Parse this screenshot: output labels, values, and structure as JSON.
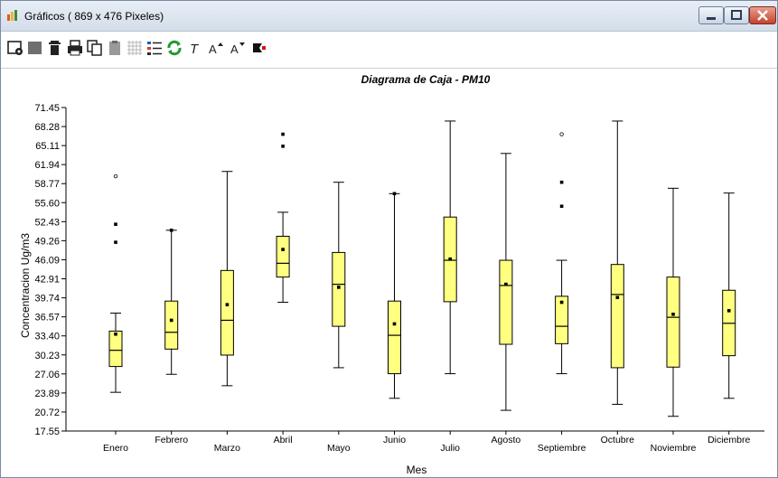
{
  "window": {
    "title": "Gráficos ( 869 x 476 Pixeles)"
  },
  "toolbar": {
    "icons": [
      "settings-icon",
      "color-icon",
      "delete-icon",
      "print-icon",
      "copy-icon",
      "paste-icon",
      "grid-icon",
      "legend-icon",
      "refresh-icon",
      "text-style-icon",
      "font-increase-icon",
      "font-decrease-icon",
      "flag-icon"
    ],
    "labels": {
      "t": "T",
      "font_up": "A",
      "font_down": "A"
    }
  },
  "chart_data": {
    "type": "box",
    "title": "Diagrama de Caja - PM10",
    "xlabel": "Mes",
    "ylabel": "Concentracion Ug/m3",
    "ylim": [
      17.55,
      71.45
    ],
    "yticks": [
      "71.45",
      "68.28",
      "65.11",
      "61.94",
      "58.77",
      "55.60",
      "52.43",
      "49.26",
      "46.09",
      "42.91",
      "39.74",
      "36.57",
      "33.40",
      "30.23",
      "27.06",
      "23.89",
      "20.72",
      "17.55"
    ],
    "grid": false,
    "box_color": "#ffff80",
    "categories": [
      "Enero",
      "Febrero",
      "Marzo",
      "Abril",
      "Mayo",
      "Junio",
      "Julio",
      "Agosto",
      "Septiembre",
      "Octubre",
      "Noviembre",
      "Diciembre"
    ],
    "boxes": [
      {
        "min": 24.0,
        "q1": 28.3,
        "median": 31.0,
        "q3": 34.2,
        "max": 37.2,
        "mean": 33.7,
        "outliers": [
          49.0,
          52.0
        ],
        "extremes": [
          60.0
        ]
      },
      {
        "min": 27.0,
        "q1": 31.2,
        "median": 34.0,
        "q3": 39.2,
        "max": 51.0,
        "mean": 36.0,
        "outliers": [
          51.0
        ],
        "extremes": []
      },
      {
        "min": 25.1,
        "q1": 30.2,
        "median": 36.0,
        "q3": 44.3,
        "max": 60.8,
        "mean": 38.6,
        "outliers": [],
        "extremes": []
      },
      {
        "min": 39.0,
        "q1": 43.2,
        "median": 45.5,
        "q3": 50.0,
        "max": 54.0,
        "mean": 47.8,
        "outliers": [
          65.0,
          67.0
        ],
        "extremes": []
      },
      {
        "min": 28.1,
        "q1": 35.0,
        "median": 42.0,
        "q3": 47.3,
        "max": 59.0,
        "mean": 41.5,
        "outliers": [],
        "extremes": []
      },
      {
        "min": 23.0,
        "q1": 27.1,
        "median": 33.5,
        "q3": 39.2,
        "max": 57.1,
        "mean": 35.4,
        "outliers": [
          57.1
        ],
        "extremes": []
      },
      {
        "min": 27.1,
        "q1": 39.1,
        "median": 46.0,
        "q3": 53.2,
        "max": 69.2,
        "mean": 46.2,
        "outliers": [],
        "extremes": []
      },
      {
        "min": 21.0,
        "q1": 32.0,
        "median": 41.8,
        "q3": 46.0,
        "max": 63.8,
        "mean": 42.0,
        "outliers": [],
        "extremes": []
      },
      {
        "min": 27.1,
        "q1": 32.1,
        "median": 35.0,
        "q3": 40.0,
        "max": 46.0,
        "mean": 39.0,
        "outliers": [
          55.0,
          59.0
        ],
        "extremes": [
          67.0
        ]
      },
      {
        "min": 22.0,
        "q1": 28.1,
        "median": 40.3,
        "q3": 45.3,
        "max": 69.2,
        "mean": 39.8,
        "outliers": [],
        "extremes": []
      },
      {
        "min": 20.0,
        "q1": 28.2,
        "median": 36.5,
        "q3": 43.2,
        "max": 58.0,
        "mean": 37.0,
        "outliers": [],
        "extremes": []
      },
      {
        "min": 23.0,
        "q1": 30.1,
        "median": 35.5,
        "q3": 41.0,
        "max": 57.2,
        "mean": 37.6,
        "outliers": [],
        "extremes": []
      }
    ]
  }
}
